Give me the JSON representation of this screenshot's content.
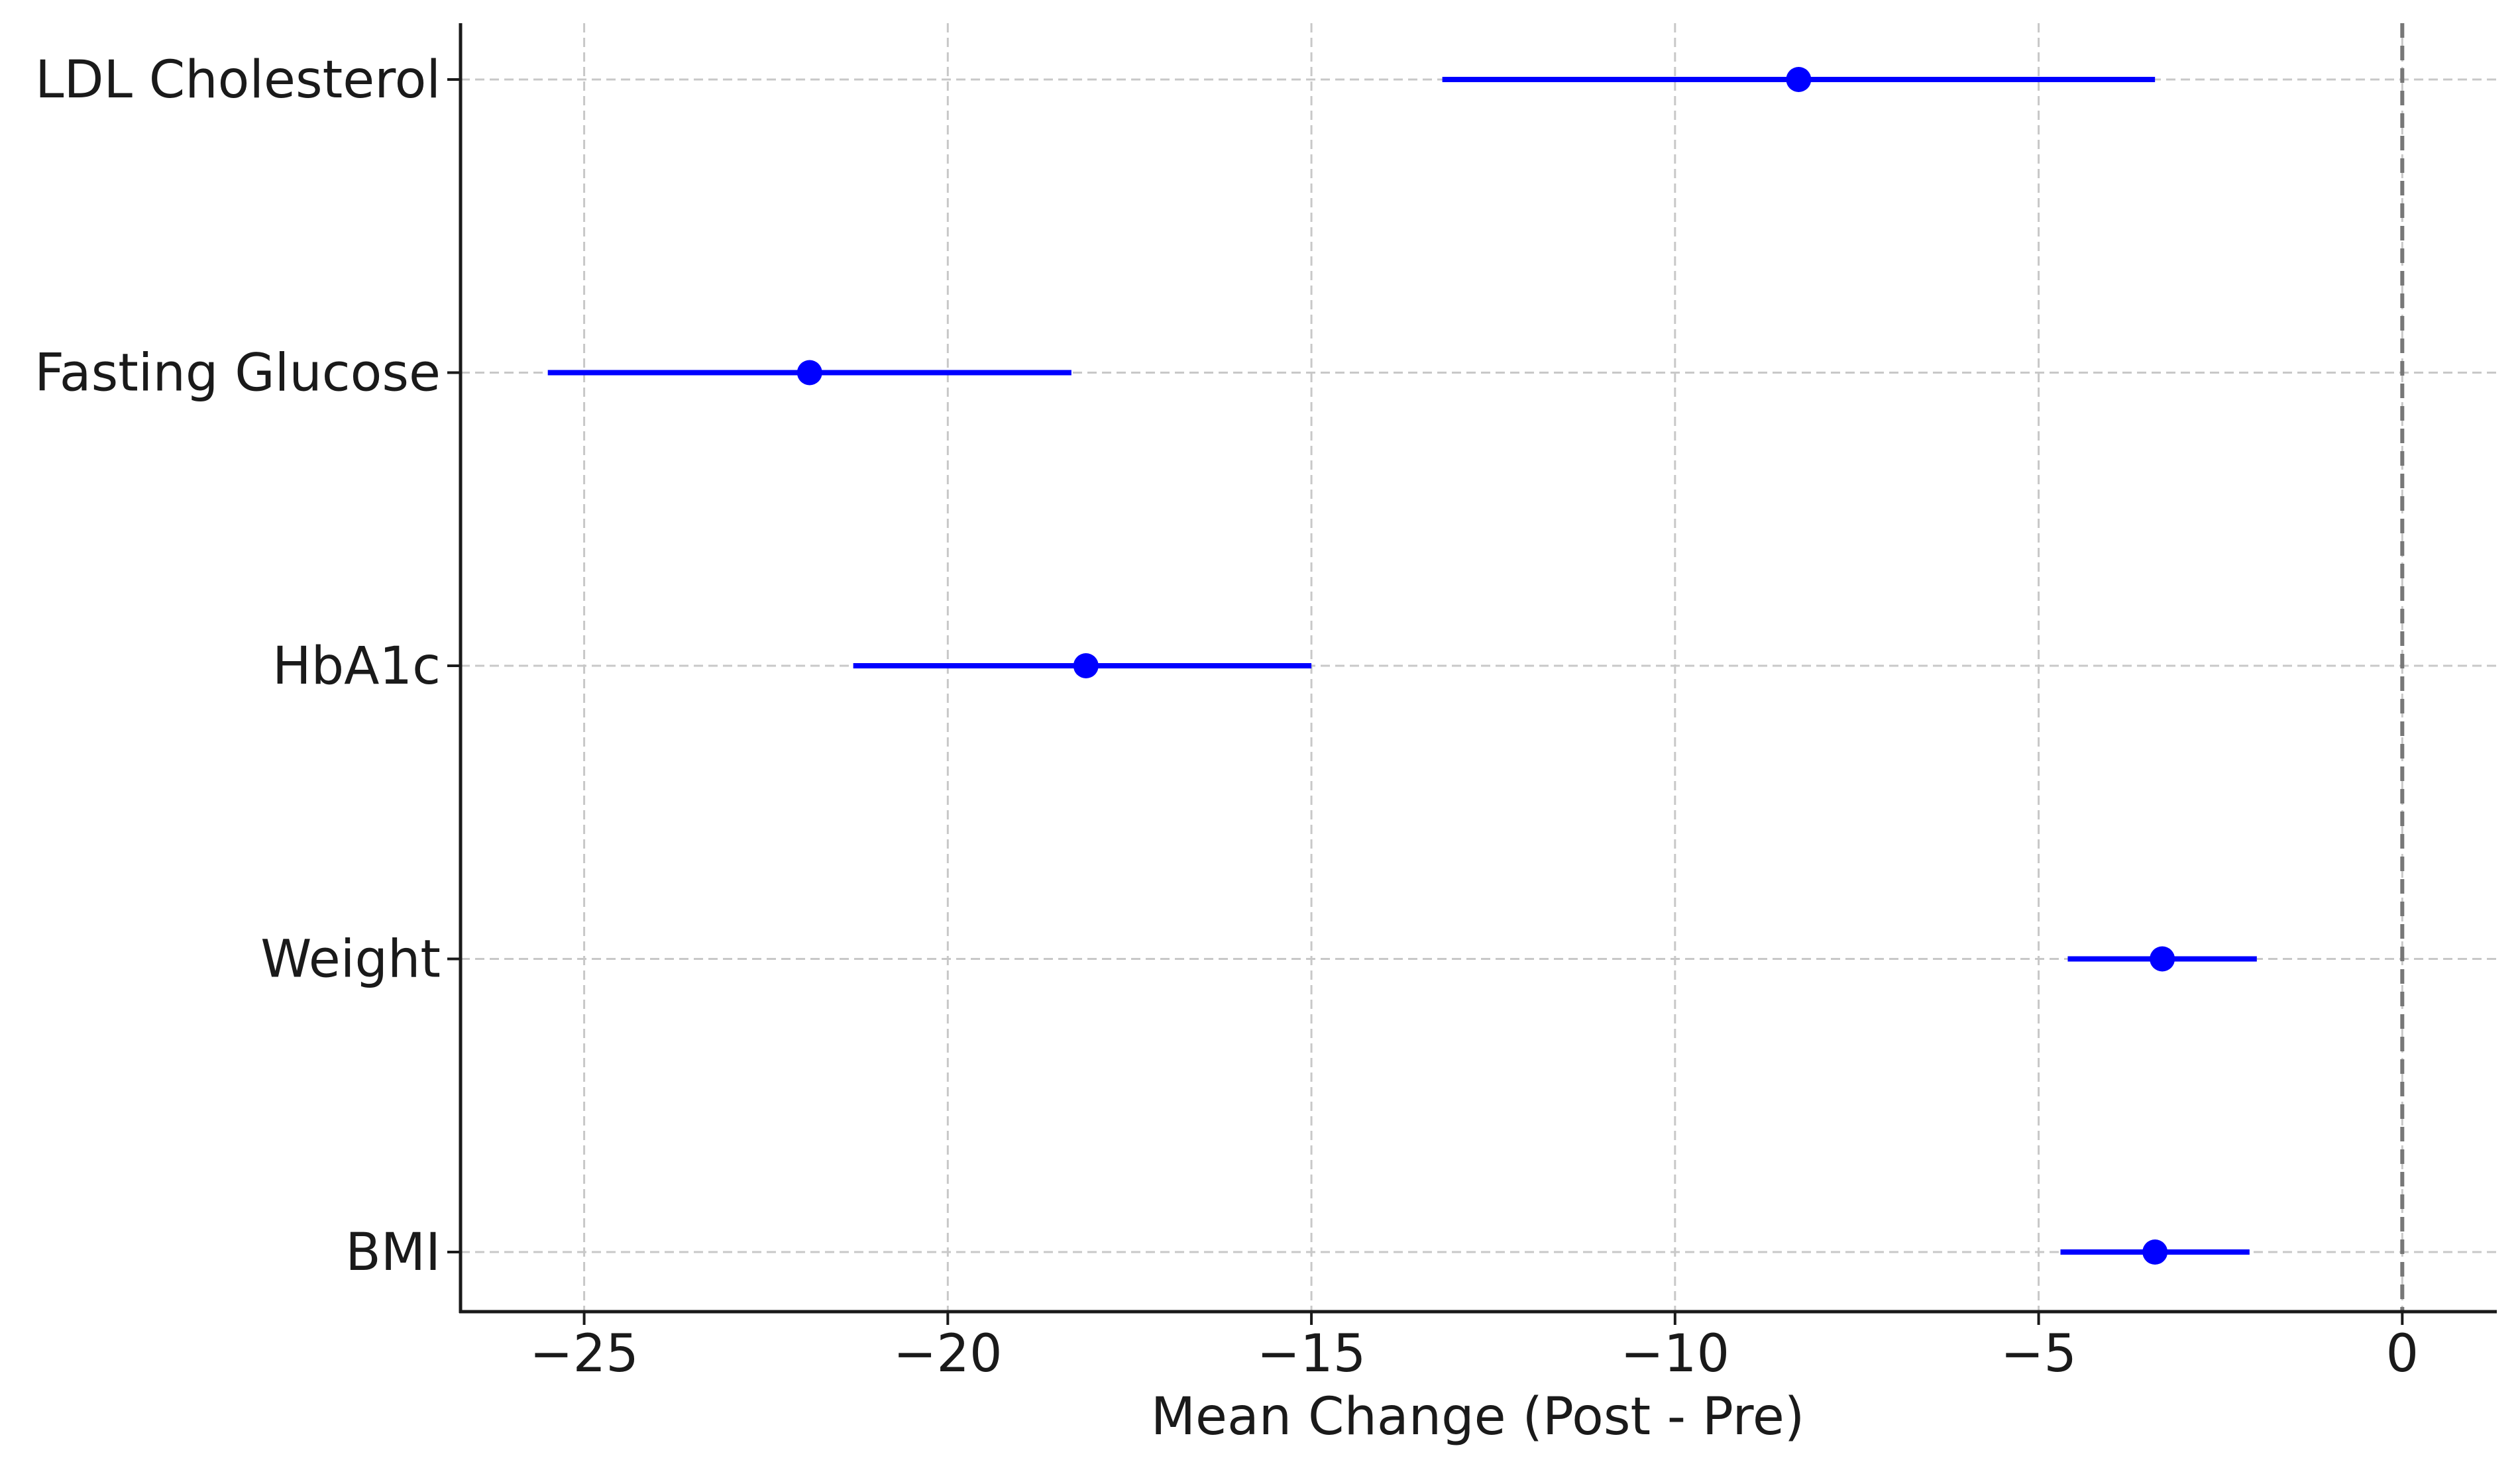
{
  "chart_data": {
    "type": "forest",
    "title": "",
    "xlabel": "Mean Change (Post - Pre)",
    "ylabel": "",
    "xlim": [
      -26.7,
      1.3
    ],
    "x_ticks": [
      -25,
      -20,
      -15,
      -10,
      -5,
      0
    ],
    "x_tick_labels": [
      "−25",
      "−20",
      "−15",
      "−10",
      "−5",
      "0"
    ],
    "grid": true,
    "reference_line": 0,
    "color": "#0000ff",
    "categories": [
      "LDL Cholesterol",
      "Fasting Glucose",
      "HbA1c",
      "Weight",
      "BMI"
    ],
    "series": [
      {
        "mean": [
          -8.3,
          -21.9,
          -18.1,
          -3.3,
          -3.4
        ],
        "ci_low": [
          -13.2,
          -25.5,
          -21.3,
          -4.6,
          -4.7
        ],
        "ci_high": [
          -3.4,
          -18.3,
          -15.0,
          -2.0,
          -2.1
        ]
      }
    ]
  }
}
